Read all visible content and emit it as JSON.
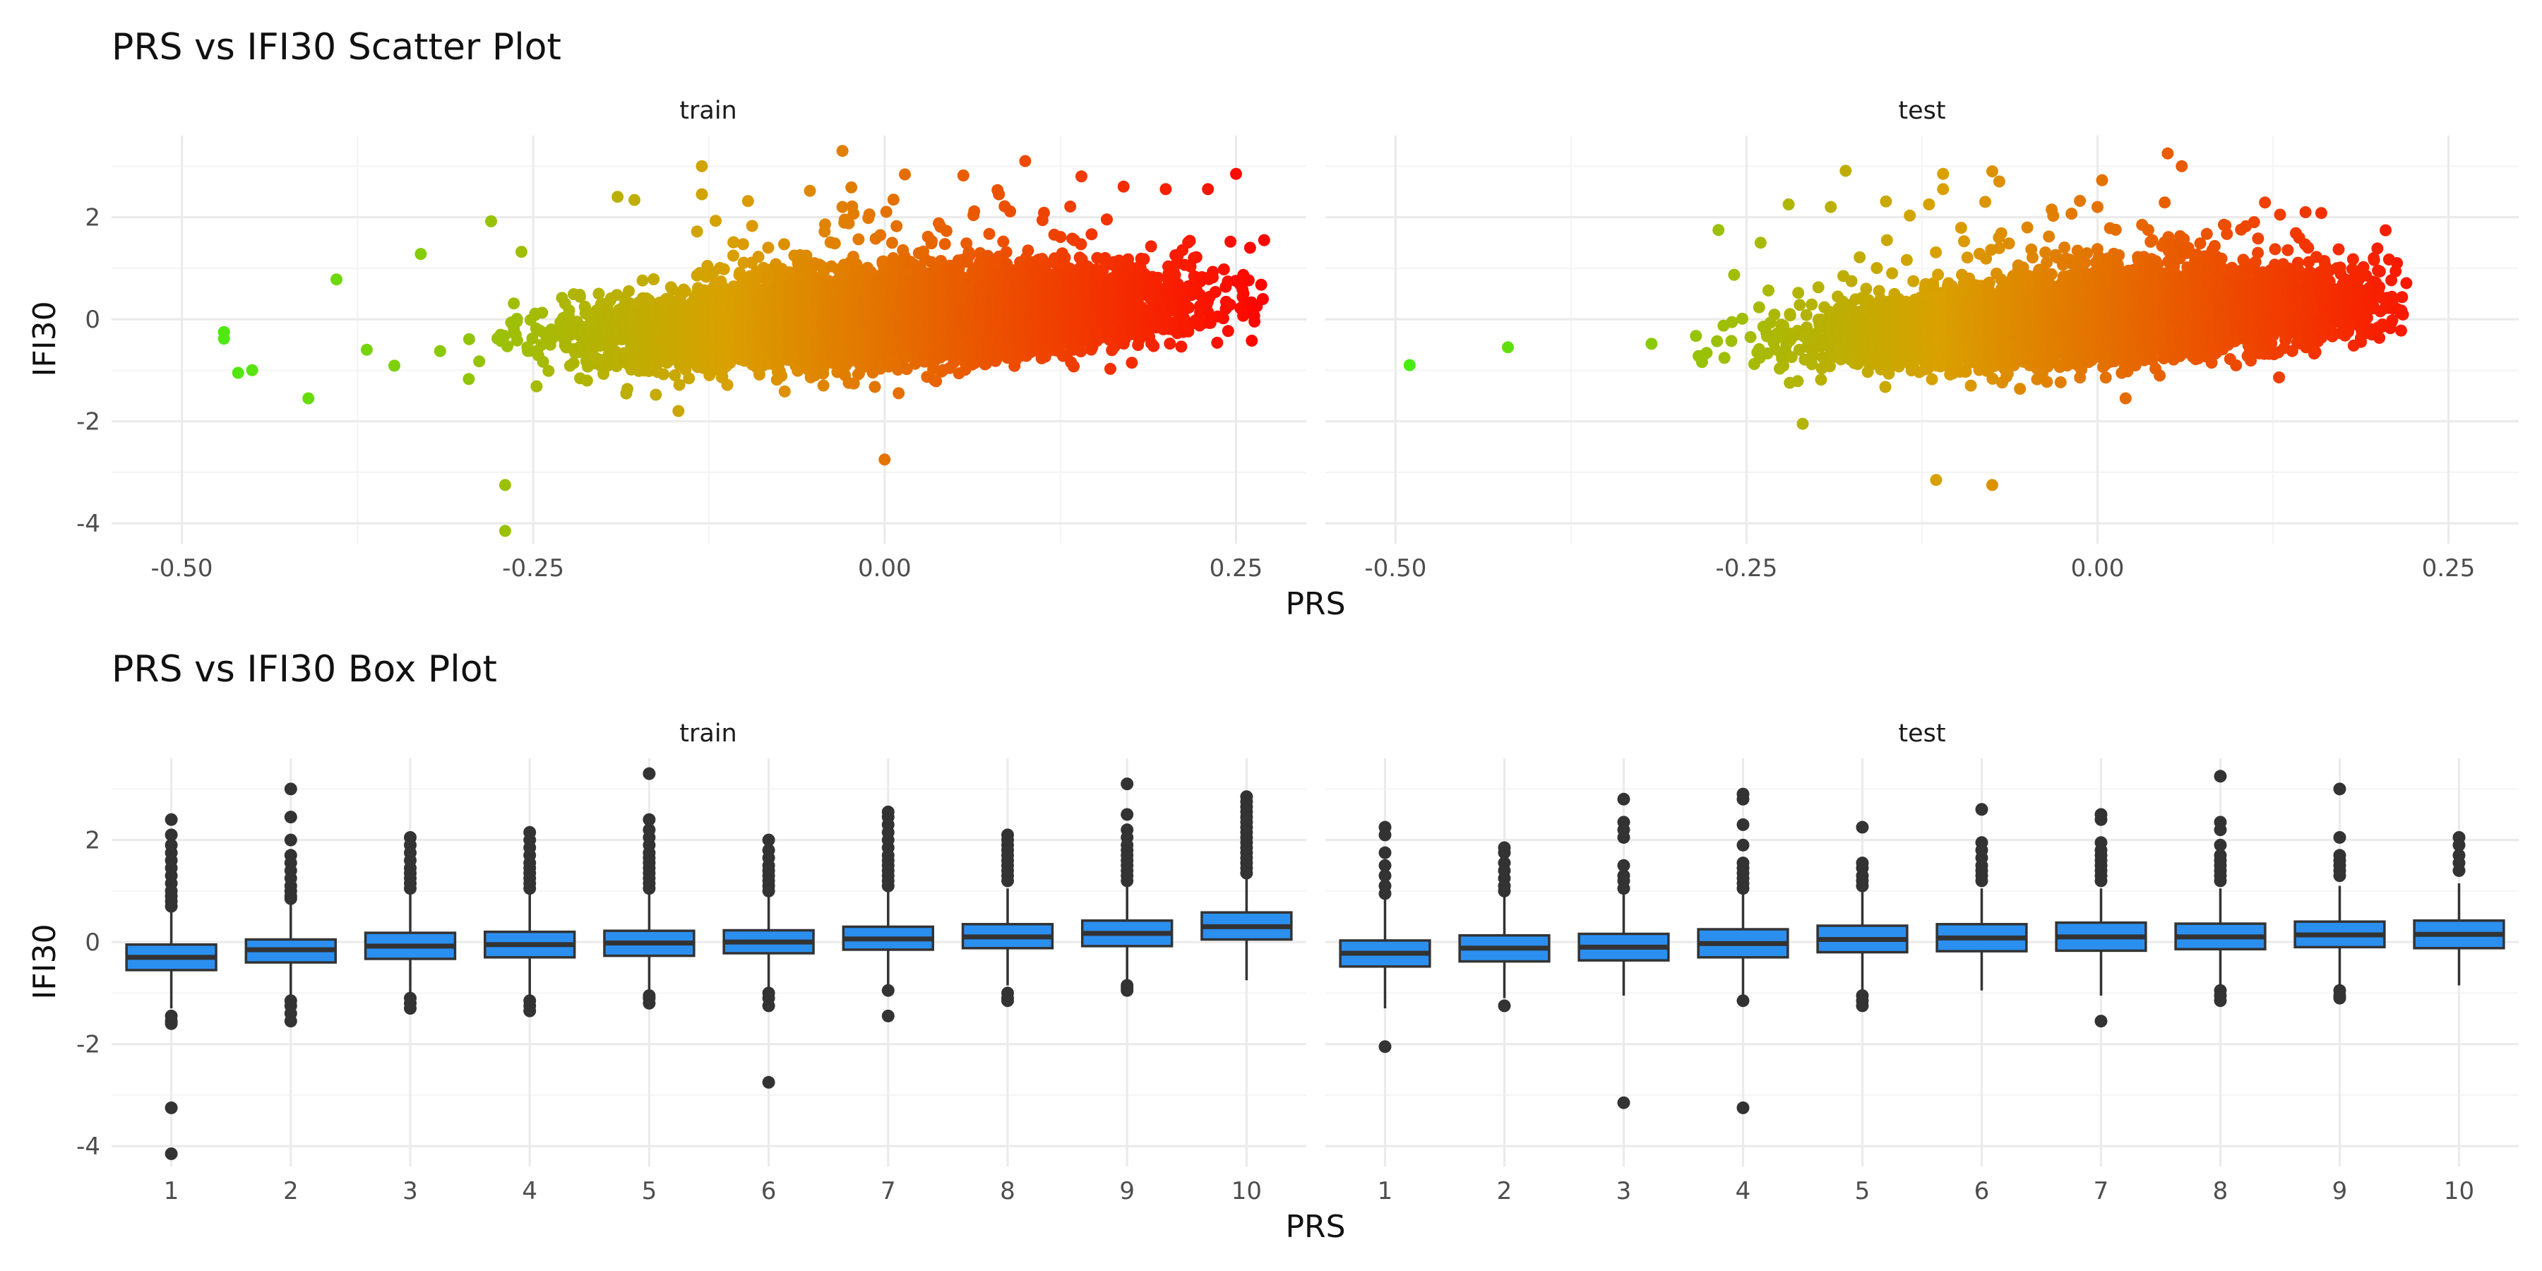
{
  "chart_data": [
    {
      "type": "scatter",
      "title": "PRS vs IFI30 Scatter Plot",
      "xlabel": "PRS",
      "ylabel": "IFI30",
      "facets": [
        "train",
        "test"
      ],
      "xlim": [
        -0.55,
        0.3
      ],
      "ylim": [
        -4.4,
        3.6
      ],
      "x_ticks": [
        -0.5,
        -0.25,
        0.0,
        0.25
      ],
      "x_tick_labels": [
        "-0.50",
        "-0.25",
        "0.00",
        "0.25"
      ],
      "y_ticks": [
        -4,
        -2,
        0,
        2
      ],
      "y_tick_labels": [
        "-4",
        "-2",
        "0",
        "2"
      ],
      "grid": true,
      "color_gradient": {
        "low": "#44ee10",
        "mid": "#d9a000",
        "high": "#ff0000"
      },
      "trend": {
        "intercept": 0.0,
        "slope": 1.55,
        "sd": 0.38
      },
      "series": [
        {
          "facet": "train",
          "n_points": 9000,
          "x_range": [
            -0.47,
            0.27
          ],
          "notable_points": [
            [
              -0.47,
              -0.25
            ],
            [
              -0.47,
              -0.38
            ],
            [
              -0.46,
              -1.05
            ],
            [
              -0.45,
              -1.0
            ],
            [
              -0.41,
              -1.55
            ],
            [
              -0.39,
              0.78
            ],
            [
              -0.33,
              1.28
            ],
            [
              -0.28,
              1.92
            ],
            [
              -0.27,
              -3.25
            ],
            [
              -0.27,
              -4.15
            ],
            [
              -0.19,
              2.4
            ],
            [
              -0.13,
              2.45
            ],
            [
              -0.13,
              3.0
            ],
            [
              -0.05,
              1.1
            ],
            [
              -0.03,
              3.3
            ],
            [
              -0.03,
              2.2
            ],
            [
              0.0,
              -2.75
            ],
            [
              0.01,
              -1.45
            ],
            [
              0.1,
              3.1
            ],
            [
              0.14,
              2.8
            ],
            [
              0.17,
              2.6
            ],
            [
              0.2,
              2.55
            ],
            [
              0.22,
              1.2
            ],
            [
              0.23,
              2.55
            ],
            [
              0.25,
              2.85
            ],
            [
              0.26,
              1.4
            ],
            [
              0.27,
              1.55
            ]
          ]
        },
        {
          "facet": "test",
          "n_points": 6000,
          "x_range": [
            -0.49,
            0.22
          ],
          "notable_points": [
            [
              -0.49,
              -0.9
            ],
            [
              -0.42,
              -0.55
            ],
            [
              -0.27,
              1.75
            ],
            [
              -0.24,
              1.5
            ],
            [
              -0.22,
              2.25
            ],
            [
              -0.21,
              -2.05
            ],
            [
              -0.19,
              2.2
            ],
            [
              -0.15,
              1.55
            ],
            [
              -0.12,
              2.25
            ],
            [
              -0.11,
              2.85
            ],
            [
              -0.11,
              2.55
            ],
            [
              -0.115,
              -3.15
            ],
            [
              -0.08,
              2.3
            ],
            [
              -0.075,
              2.9
            ],
            [
              -0.07,
              2.7
            ],
            [
              -0.075,
              -3.25
            ],
            [
              -0.05,
              1.8
            ],
            [
              0.0,
              2.2
            ],
            [
              0.02,
              -1.55
            ],
            [
              0.05,
              3.25
            ],
            [
              0.06,
              3.0
            ],
            [
              0.09,
              1.85
            ],
            [
              0.13,
              2.05
            ],
            [
              0.15,
              1.4
            ],
            [
              0.2,
              0.55
            ],
            [
              0.21,
              0.35
            ]
          ]
        }
      ]
    },
    {
      "type": "box",
      "title": "PRS vs IFI30 Box Plot",
      "xlabel": "PRS",
      "ylabel": "IFI30",
      "facets": [
        "train",
        "test"
      ],
      "categories": [
        "1",
        "2",
        "3",
        "4",
        "5",
        "6",
        "7",
        "8",
        "9",
        "10"
      ],
      "ylim": [
        -4.4,
        3.6
      ],
      "y_ticks": [
        -4,
        -2,
        0,
        2
      ],
      "y_tick_labels": [
        "-4",
        "-2",
        "0",
        "2"
      ],
      "fill": "#2b8ff0",
      "grid": true,
      "series": [
        {
          "facet": "train",
          "boxes": [
            {
              "q1": -0.55,
              "median": -0.3,
              "q3": -0.05,
              "whisker_low": -1.3,
              "whisker_high": 0.6,
              "outliers": [
                2.4,
                2.1,
                1.9,
                1.75,
                1.6,
                1.45,
                1.3,
                1.15,
                1.0,
                0.9,
                0.8,
                0.7,
                -1.45,
                -1.55,
                -1.6,
                -3.25,
                -4.15
              ]
            },
            {
              "q1": -0.4,
              "median": -0.15,
              "q3": 0.05,
              "whisker_low": -1.05,
              "whisker_high": 0.75,
              "outliers": [
                3.0,
                2.45,
                2.0,
                1.7,
                1.55,
                1.4,
                1.25,
                1.1,
                1.0,
                0.9,
                0.85,
                -1.15,
                -1.25,
                -1.4,
                -1.55
              ]
            },
            {
              "q1": -0.33,
              "median": -0.08,
              "q3": 0.18,
              "whisker_low": -1.05,
              "whisker_high": 0.95,
              "outliers": [
                2.05,
                1.9,
                1.75,
                1.6,
                1.45,
                1.35,
                1.25,
                1.15,
                1.05,
                -1.1,
                -1.2,
                -1.3
              ]
            },
            {
              "q1": -0.3,
              "median": -0.05,
              "q3": 0.2,
              "whisker_low": -1.05,
              "whisker_high": 0.95,
              "outliers": [
                2.15,
                2.0,
                1.85,
                1.7,
                1.55,
                1.45,
                1.35,
                1.25,
                1.15,
                1.05,
                -1.15,
                -1.25,
                -1.35
              ]
            },
            {
              "q1": -0.27,
              "median": -0.02,
              "q3": 0.22,
              "whisker_low": -1.0,
              "whisker_high": 0.95,
              "outliers": [
                3.3,
                2.4,
                2.2,
                2.05,
                1.9,
                1.75,
                1.65,
                1.55,
                1.45,
                1.35,
                1.25,
                1.15,
                1.05,
                -1.05,
                -1.1,
                -1.2
              ]
            },
            {
              "q1": -0.22,
              "median": 0.0,
              "q3": 0.23,
              "whisker_low": -0.95,
              "whisker_high": 0.95,
              "outliers": [
                2.0,
                1.8,
                1.65,
                1.5,
                1.4,
                1.3,
                1.2,
                1.1,
                1.0,
                -1.0,
                -1.1,
                -1.25,
                -2.75
              ]
            },
            {
              "q1": -0.15,
              "median": 0.06,
              "q3": 0.3,
              "whisker_low": -0.85,
              "whisker_high": 1.0,
              "outliers": [
                2.55,
                2.45,
                2.3,
                2.15,
                2.0,
                1.85,
                1.7,
                1.6,
                1.5,
                1.4,
                1.3,
                1.2,
                1.1,
                -0.95,
                -1.45
              ]
            },
            {
              "q1": -0.12,
              "median": 0.1,
              "q3": 0.35,
              "whisker_low": -0.85,
              "whisker_high": 1.05,
              "outliers": [
                2.1,
                2.0,
                1.9,
                1.8,
                1.7,
                1.6,
                1.5,
                1.4,
                1.3,
                1.2,
                -1.0,
                -1.1,
                -1.15
              ]
            },
            {
              "q1": -0.08,
              "median": 0.17,
              "q3": 0.42,
              "whisker_low": -0.8,
              "whisker_high": 1.1,
              "outliers": [
                3.1,
                2.5,
                2.2,
                2.05,
                1.9,
                1.8,
                1.7,
                1.6,
                1.5,
                1.4,
                1.3,
                1.2,
                -0.85,
                -0.9,
                -0.95
              ]
            },
            {
              "q1": 0.05,
              "median": 0.3,
              "q3": 0.58,
              "whisker_low": -0.75,
              "whisker_high": 1.3,
              "outliers": [
                2.85,
                2.75,
                2.65,
                2.55,
                2.45,
                2.35,
                2.25,
                2.15,
                2.05,
                1.95,
                1.85,
                1.75,
                1.65,
                1.55,
                1.45,
                1.35
              ]
            }
          ]
        },
        {
          "facet": "test",
          "boxes": [
            {
              "q1": -0.48,
              "median": -0.22,
              "q3": 0.03,
              "whisker_low": -1.3,
              "whisker_high": 0.85,
              "outliers": [
                2.25,
                2.1,
                1.75,
                1.5,
                1.3,
                1.1,
                0.95,
                -2.05
              ]
            },
            {
              "q1": -0.38,
              "median": -0.12,
              "q3": 0.13,
              "whisker_low": -1.1,
              "whisker_high": 0.9,
              "outliers": [
                1.85,
                1.75,
                1.55,
                1.4,
                1.25,
                1.1,
                1.0,
                -1.25
              ]
            },
            {
              "q1": -0.36,
              "median": -0.1,
              "q3": 0.16,
              "whisker_low": -1.05,
              "whisker_high": 0.95,
              "outliers": [
                2.8,
                2.35,
                2.2,
                2.05,
                1.5,
                1.3,
                1.2,
                1.05,
                -3.15
              ]
            },
            {
              "q1": -0.3,
              "median": -0.03,
              "q3": 0.25,
              "whisker_low": -1.05,
              "whisker_high": 0.95,
              "outliers": [
                2.9,
                2.8,
                2.3,
                1.9,
                1.55,
                1.45,
                1.35,
                1.25,
                1.15,
                1.05,
                -1.15,
                -3.25
              ]
            },
            {
              "q1": -0.2,
              "median": 0.05,
              "q3": 0.32,
              "whisker_low": -0.95,
              "whisker_high": 1.0,
              "outliers": [
                2.25,
                1.55,
                1.45,
                1.3,
                1.2,
                1.1,
                -1.05,
                -1.15,
                -1.25
              ]
            },
            {
              "q1": -0.18,
              "median": 0.08,
              "q3": 0.35,
              "whisker_low": -0.95,
              "whisker_high": 1.05,
              "outliers": [
                2.6,
                1.95,
                1.8,
                1.65,
                1.5,
                1.4,
                1.3,
                1.2
              ]
            },
            {
              "q1": -0.17,
              "median": 0.1,
              "q3": 0.38,
              "whisker_low": -1.05,
              "whisker_high": 1.05,
              "outliers": [
                2.5,
                2.4,
                1.95,
                1.8,
                1.7,
                1.6,
                1.5,
                1.4,
                1.3,
                1.2,
                -1.55
              ]
            },
            {
              "q1": -0.14,
              "median": 0.1,
              "q3": 0.36,
              "whisker_low": -0.9,
              "whisker_high": 1.05,
              "outliers": [
                3.25,
                2.35,
                2.2,
                1.9,
                1.7,
                1.6,
                1.5,
                1.4,
                1.3,
                1.2,
                -0.95,
                -1.05,
                -1.15
              ]
            },
            {
              "q1": -0.1,
              "median": 0.14,
              "q3": 0.4,
              "whisker_low": -0.85,
              "whisker_high": 1.1,
              "outliers": [
                3.0,
                2.05,
                1.7,
                1.6,
                1.5,
                1.4,
                1.3,
                -0.95,
                -1.05,
                -1.1
              ]
            },
            {
              "q1": -0.12,
              "median": 0.15,
              "q3": 0.42,
              "whisker_low": -0.85,
              "whisker_high": 1.15,
              "outliers": [
                2.05,
                1.9,
                1.7,
                1.55,
                1.4
              ]
            }
          ]
        }
      ]
    }
  ]
}
